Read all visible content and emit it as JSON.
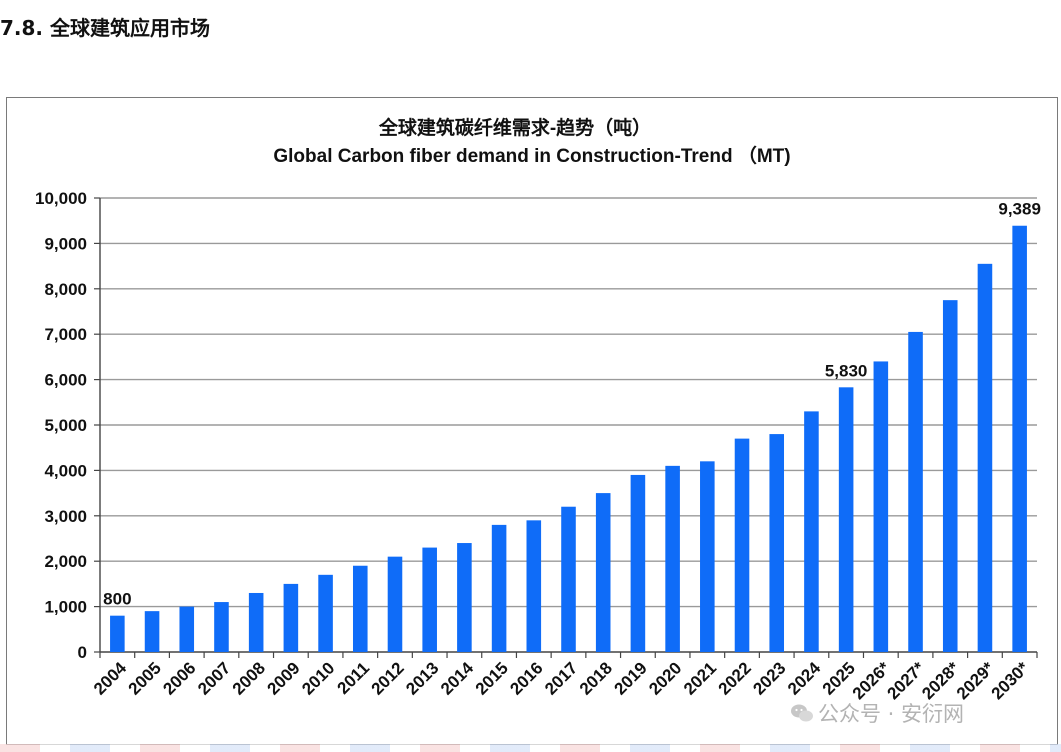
{
  "section": {
    "heading": "7.8.  全球建筑应用市场"
  },
  "watermark": {
    "text": "公众号 · 安衍网"
  },
  "colors": {
    "bar": "#0f6cf8",
    "grid": "#9a9a9a",
    "axis": "#444444",
    "text": "#111111"
  },
  "chart_data": {
    "type": "bar",
    "title": "全球建筑碳纤维需求-趋势（吨）",
    "subtitle": "Global Carbon fiber demand in Construction-Trend （MT)",
    "xlabel": "",
    "ylabel": "",
    "ylim": [
      0,
      10000
    ],
    "yticks": [
      0,
      1000,
      2000,
      3000,
      4000,
      5000,
      6000,
      7000,
      8000,
      9000,
      10000
    ],
    "ytick_labels": [
      "0",
      "1,000",
      "2,000",
      "3,000",
      "4,000",
      "5,000",
      "6,000",
      "7,000",
      "8,000",
      "9,000",
      "10,000"
    ],
    "grid": true,
    "categories": [
      "2004",
      "2005",
      "2006",
      "2007",
      "2008",
      "2009",
      "2010",
      "2011",
      "2012",
      "2013",
      "2014",
      "2015",
      "2016",
      "2017",
      "2018",
      "2019",
      "2020",
      "2021",
      "2022",
      "2023",
      "2024",
      "2025",
      "2026*",
      "2027*",
      "2028*",
      "2029*",
      "2030*"
    ],
    "values": [
      800,
      900,
      1000,
      1100,
      1300,
      1500,
      1700,
      1900,
      2100,
      2300,
      2400,
      2800,
      2900,
      3200,
      3500,
      3900,
      4100,
      4200,
      4700,
      4800,
      5300,
      5830,
      6400,
      7050,
      7750,
      8550,
      9389
    ],
    "data_labels": [
      {
        "category": "2004",
        "text": "800"
      },
      {
        "category": "2025",
        "text": "5,830"
      },
      {
        "category": "2030*",
        "text": "9,389"
      }
    ]
  }
}
